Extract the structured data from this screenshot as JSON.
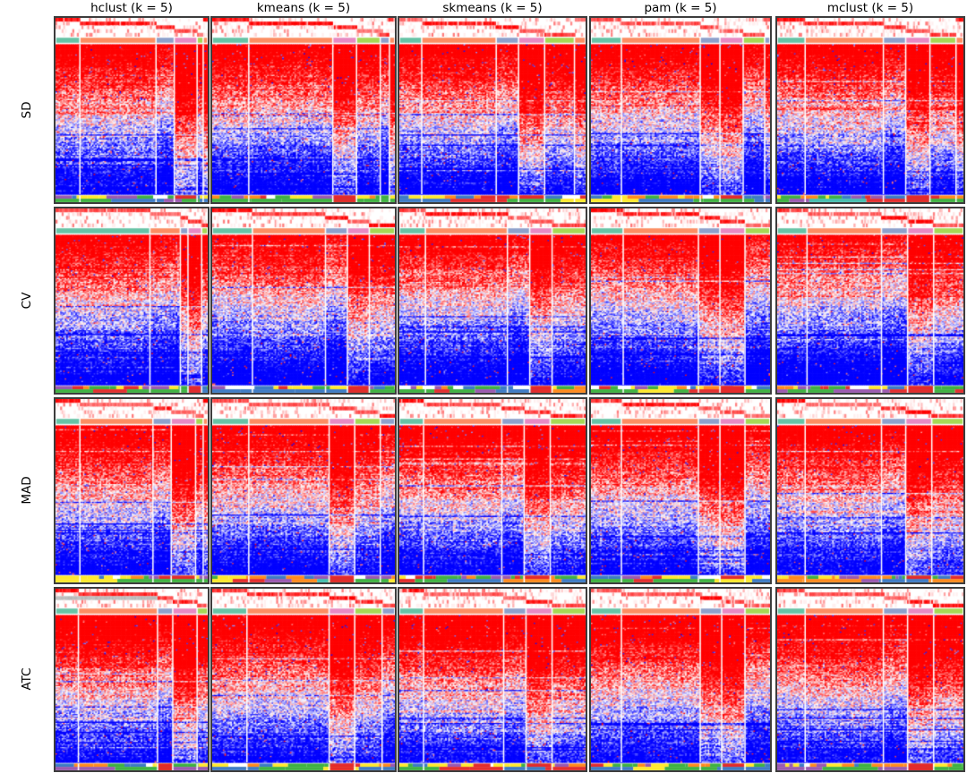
{
  "chart_data": {
    "type": "heatmap",
    "description": "4x5 grid of consensus-clustering signature heatmaps. Rows are top-value scoring methods, columns are partition methods with k = 5. Each panel contains 5 membership-probability annotation rows (white to red), a class color strip of 5 cluster colors, a red-white-blue expression heatmap split by white separators into 5 column clusters (red at top fading to blue at bottom), and 2 categorical annotation rows at the bottom.",
    "row_methods": [
      "SD",
      "CV",
      "MAD",
      "ATC"
    ],
    "column_methods": [
      "hclust (k = 5)",
      "kmeans (k = 5)",
      "skmeans (k = 5)",
      "pam (k = 5)",
      "mclust (k = 5)"
    ],
    "k": 5,
    "colors": {
      "heat_high": "#FF0000",
      "heat_mid": "#FFFFFF",
      "heat_low": "#0000FF",
      "prob_high": "#FF0000",
      "prob_low": "#FFFFFF",
      "class_palette": [
        "#66C2A5",
        "#FC8D62",
        "#8DA0CB",
        "#E78AC3",
        "#A6D854"
      ],
      "group_palette": [
        "#3FB141",
        "#FFE82E",
        "#3E7BC4",
        "#FF8A1E",
        "#E32D2D",
        "#9B59B0",
        "#45BDAE"
      ],
      "na_gray": "#C6C6C6",
      "panel_border": "#3D3D3D"
    },
    "annotation_structure": {
      "top_probability_rows": 5,
      "class_strip_rows": 1,
      "bottom_category_rows": 2,
      "column_cluster_count": 5
    },
    "panels": [
      {
        "row": "SD",
        "col": "hclust",
        "seed": 11,
        "mid": 0.5,
        "segs": [
          [
            0,
            0.16
          ],
          [
            1,
            0.5
          ],
          [
            2,
            0.12
          ],
          [
            3,
            0.15
          ],
          [
            4,
            0.04
          ],
          [
            1,
            0.03
          ]
        ],
        "offsets": [
          0,
          0.02,
          -0.06,
          0.28,
          0.12,
          0.3
        ],
        "red": 3,
        "gray": false
      },
      {
        "row": "SD",
        "col": "kmeans",
        "seed": 12,
        "mid": 0.5,
        "segs": [
          [
            0,
            0.2
          ],
          [
            1,
            0.46
          ],
          [
            3,
            0.13
          ],
          [
            4,
            0.13
          ],
          [
            2,
            0.05
          ],
          [
            1,
            0.03
          ]
        ],
        "offsets": [
          0.02,
          0,
          0.22,
          0.05,
          -0.05,
          0.25
        ],
        "red": 2,
        "gray": false
      },
      {
        "row": "SD",
        "col": "skmeans",
        "seed": 13,
        "mid": 0.5,
        "segs": [
          [
            0,
            0.12
          ],
          [
            1,
            0.4
          ],
          [
            2,
            0.12
          ],
          [
            3,
            0.14
          ],
          [
            4,
            0.16
          ],
          [
            1,
            0.06
          ]
        ],
        "offsets": [
          0,
          0.03,
          -0.04,
          0.25,
          0.08,
          0.2
        ],
        "red": 3,
        "gray": false
      },
      {
        "row": "SD",
        "col": "pam",
        "seed": 14,
        "mid": 0.5,
        "segs": [
          [
            0,
            0.17
          ],
          [
            1,
            0.44
          ],
          [
            2,
            0.11
          ],
          [
            3,
            0.13
          ],
          [
            4,
            0.12
          ],
          [
            2,
            0.03
          ]
        ],
        "offsets": [
          0.02,
          0,
          0.2,
          0.26,
          -0.06,
          0.1
        ],
        "red": 3,
        "gray": false
      },
      {
        "row": "SD",
        "col": "mclust",
        "seed": 15,
        "mid": 0.5,
        "segs": [
          [
            0,
            0.15
          ],
          [
            1,
            0.42
          ],
          [
            2,
            0.12
          ],
          [
            3,
            0.13
          ],
          [
            4,
            0.14
          ],
          [
            1,
            0.04
          ]
        ],
        "offsets": [
          0,
          0.04,
          -0.05,
          0.24,
          0.1,
          0.22
        ],
        "red": 3,
        "gray": false
      },
      {
        "row": "CV",
        "col": "hclust",
        "seed": 21,
        "mid": 0.44,
        "segs": [
          [
            0,
            0.62
          ],
          [
            1,
            0.2
          ],
          [
            2,
            0.05
          ],
          [
            3,
            0.09
          ],
          [
            4,
            0.04
          ]
        ],
        "offsets": [
          0.05,
          -0.02,
          0.18,
          0.3,
          0.1
        ],
        "red": 3,
        "gray": false
      },
      {
        "row": "CV",
        "col": "kmeans",
        "seed": 22,
        "mid": 0.44,
        "segs": [
          [
            0,
            0.22
          ],
          [
            1,
            0.4
          ],
          [
            2,
            0.12
          ],
          [
            3,
            0.12
          ],
          [
            4,
            0.14
          ]
        ],
        "offsets": [
          0,
          0.05,
          -0.04,
          0.22,
          0.12
        ],
        "red": 3,
        "gray": false
      },
      {
        "row": "CV",
        "col": "skmeans",
        "seed": 23,
        "mid": 0.44,
        "segs": [
          [
            0,
            0.14
          ],
          [
            1,
            0.44
          ],
          [
            2,
            0.12
          ],
          [
            3,
            0.12
          ],
          [
            4,
            0.18
          ]
        ],
        "offsets": [
          0.02,
          0.04,
          -0.03,
          0.2,
          0.1
        ],
        "red": 3,
        "gray": false
      },
      {
        "row": "CV",
        "col": "pam",
        "seed": 24,
        "mid": 0.44,
        "segs": [
          [
            0,
            0.18
          ],
          [
            1,
            0.42
          ],
          [
            2,
            0.12
          ],
          [
            3,
            0.14
          ],
          [
            4,
            0.14
          ]
        ],
        "offsets": [
          0,
          0.03,
          0.2,
          0.25,
          -0.05
        ],
        "red": 3,
        "gray": false
      },
      {
        "row": "CV",
        "col": "mclust",
        "seed": 25,
        "mid": 0.44,
        "segs": [
          [
            0,
            0.16
          ],
          [
            1,
            0.4
          ],
          [
            2,
            0.14
          ],
          [
            3,
            0.14
          ],
          [
            4,
            0.16
          ]
        ],
        "offsets": [
          0.03,
          0,
          -0.06,
          0.22,
          0.12
        ],
        "red": 3,
        "gray": false
      },
      {
        "row": "MAD",
        "col": "hclust",
        "seed": 31,
        "mid": 0.52,
        "segs": [
          [
            0,
            0.16
          ],
          [
            1,
            0.48
          ],
          [
            2,
            0.12
          ],
          [
            3,
            0.16
          ],
          [
            4,
            0.05
          ],
          [
            1,
            0.03
          ]
        ],
        "offsets": [
          0,
          0.02,
          -0.05,
          0.26,
          0.1,
          0.2
        ],
        "red": 3,
        "gray": false
      },
      {
        "row": "MAD",
        "col": "kmeans",
        "seed": 32,
        "mid": 0.52,
        "segs": [
          [
            0,
            0.2
          ],
          [
            1,
            0.44
          ],
          [
            3,
            0.14
          ],
          [
            4,
            0.14
          ],
          [
            2,
            0.08
          ]
        ],
        "offsets": [
          0.02,
          0,
          0.24,
          0.06,
          -0.04
        ],
        "red": 2,
        "gray": false
      },
      {
        "row": "MAD",
        "col": "skmeans",
        "seed": 33,
        "mid": 0.52,
        "segs": [
          [
            0,
            0.13
          ],
          [
            1,
            0.42
          ],
          [
            2,
            0.12
          ],
          [
            3,
            0.14
          ],
          [
            4,
            0.19
          ]
        ],
        "offsets": [
          0,
          0.04,
          -0.04,
          0.22,
          0.1
        ],
        "red": 3,
        "gray": false
      },
      {
        "row": "MAD",
        "col": "pam",
        "seed": 34,
        "mid": 0.52,
        "segs": [
          [
            0,
            0.17
          ],
          [
            1,
            0.43
          ],
          [
            2,
            0.12
          ],
          [
            3,
            0.14
          ],
          [
            4,
            0.14
          ]
        ],
        "offsets": [
          0.02,
          0,
          0.2,
          0.24,
          -0.05
        ],
        "red": 3,
        "gray": false
      },
      {
        "row": "MAD",
        "col": "mclust",
        "seed": 35,
        "mid": 0.52,
        "segs": [
          [
            0,
            0.15
          ],
          [
            1,
            0.41
          ],
          [
            2,
            0.13
          ],
          [
            3,
            0.14
          ],
          [
            4,
            0.17
          ]
        ],
        "offsets": [
          0,
          0.03,
          -0.05,
          0.22,
          0.12
        ],
        "red": 3,
        "gray": false
      },
      {
        "row": "ATC",
        "col": "hclust",
        "seed": 41,
        "mid": 0.56,
        "segs": [
          [
            0,
            0.15
          ],
          [
            1,
            0.52
          ],
          [
            2,
            0.1
          ],
          [
            3,
            0.16
          ],
          [
            4,
            0.07
          ]
        ],
        "offsets": [
          0,
          0.04,
          -0.05,
          0.24,
          0.1
        ],
        "red": 2,
        "gray": true
      },
      {
        "row": "ATC",
        "col": "kmeans",
        "seed": 42,
        "mid": 0.56,
        "segs": [
          [
            0,
            0.19
          ],
          [
            1,
            0.45
          ],
          [
            3,
            0.14
          ],
          [
            4,
            0.15
          ],
          [
            2,
            0.07
          ]
        ],
        "offsets": [
          0.02,
          0,
          0.22,
          0.08,
          -0.04
        ],
        "red": 2,
        "gray": false
      },
      {
        "row": "ATC",
        "col": "skmeans",
        "seed": 43,
        "mid": 0.56,
        "segs": [
          [
            0,
            0.13
          ],
          [
            1,
            0.43
          ],
          [
            2,
            0.12
          ],
          [
            3,
            0.14
          ],
          [
            4,
            0.18
          ]
        ],
        "offsets": [
          0,
          0.04,
          -0.03,
          0.2,
          0.1
        ],
        "red": 3,
        "gray": false
      },
      {
        "row": "ATC",
        "col": "pam",
        "seed": 44,
        "mid": 0.56,
        "segs": [
          [
            0,
            0.17
          ],
          [
            1,
            0.44
          ],
          [
            2,
            0.12
          ],
          [
            3,
            0.13
          ],
          [
            4,
            0.14
          ]
        ],
        "offsets": [
          0.02,
          0,
          0.18,
          0.24,
          -0.05
        ],
        "red": 3,
        "gray": false
      },
      {
        "row": "ATC",
        "col": "mclust",
        "seed": 45,
        "mid": 0.56,
        "segs": [
          [
            0,
            0.15
          ],
          [
            1,
            0.42
          ],
          [
            2,
            0.13
          ],
          [
            3,
            0.14
          ],
          [
            4,
            0.16
          ]
        ],
        "offsets": [
          0,
          0.03,
          -0.05,
          0.22,
          0.12
        ],
        "red": 3,
        "gray": false
      }
    ]
  }
}
